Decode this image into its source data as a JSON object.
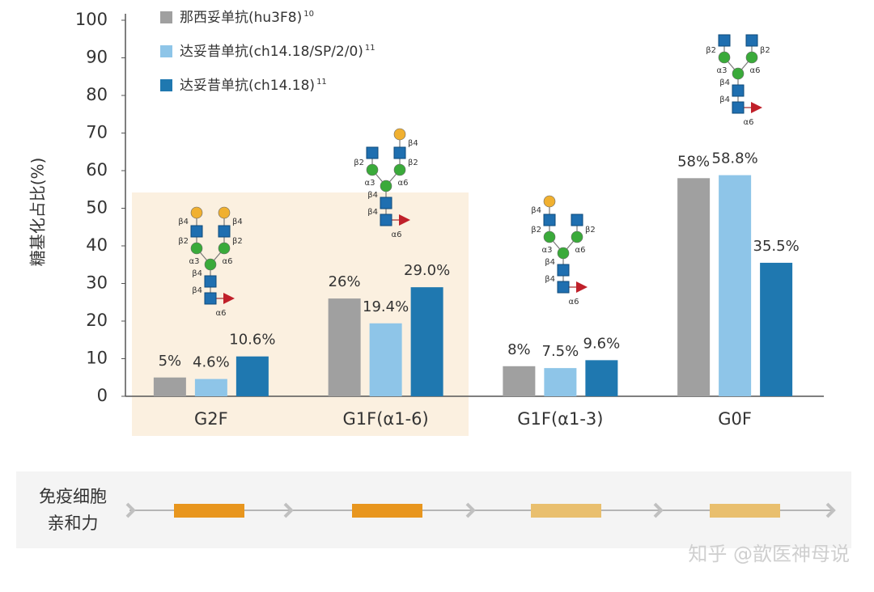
{
  "chart_data": {
    "type": "bar",
    "y_label": "糖基化占比(%)",
    "categories": [
      "G2F",
      "G1F(α1-6)",
      "G1F(α1-3)",
      "G0F"
    ],
    "series": [
      {
        "name": "那西妥单抗(hu3F8)",
        "ref": "10",
        "color": "#a0a0a0",
        "values": [
          5,
          26,
          8,
          58
        ],
        "value_labels": [
          "5%",
          "26%",
          "8%",
          "58%"
        ]
      },
      {
        "name": "达妥昔单抗(ch14.18/SP/2/0)",
        "ref": "11",
        "color": "#8ec5e8",
        "values": [
          4.6,
          19.4,
          7.5,
          58.8
        ],
        "value_labels": [
          "4.6%",
          "19.4%",
          "7.5%",
          "58.8%"
        ]
      },
      {
        "name": "达妥昔单抗(ch14.18)",
        "ref": "11",
        "color": "#1f78b0",
        "values": [
          10.6,
          29.0,
          9.6,
          35.5
        ],
        "value_labels": [
          "10.6%",
          "29.0%",
          "9.6%",
          "35.5%"
        ]
      }
    ],
    "ylim": [
      0,
      100
    ],
    "yticks": [
      0,
      10,
      20,
      30,
      40,
      50,
      60,
      70,
      80,
      90,
      100
    ],
    "linkages": [
      "β4",
      "β2",
      "α3",
      "α6"
    ],
    "affinity_label": [
      "免疫细胞",
      "亲和力"
    ],
    "watermark": "知乎 @歆医神母说"
  }
}
